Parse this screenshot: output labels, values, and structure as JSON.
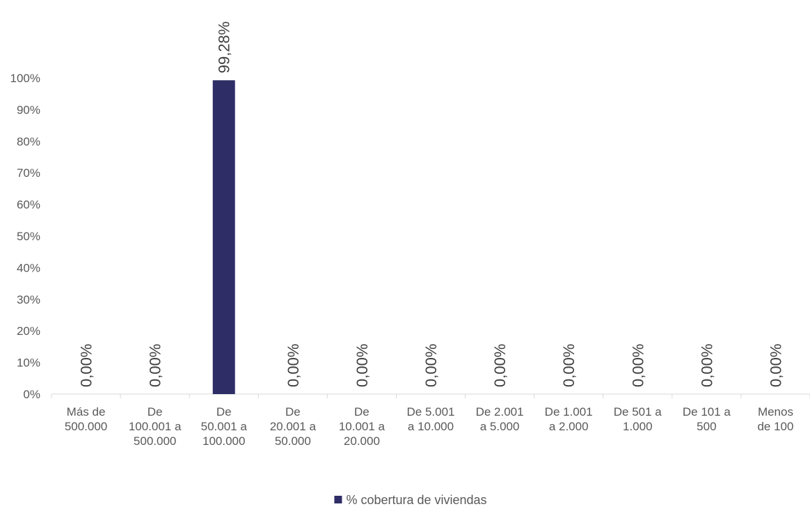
{
  "chart_data": {
    "type": "bar",
    "categories": [
      [
        "Más de",
        "500.000"
      ],
      [
        "De",
        "100.001 a",
        "500.000"
      ],
      [
        "De",
        "50.001 a",
        "100.000"
      ],
      [
        "De",
        "20.001 a",
        "50.000"
      ],
      [
        "De",
        "10.001 a",
        "20.000"
      ],
      [
        "De 5.001",
        "a 10.000"
      ],
      [
        "De 2.001",
        "a 5.000"
      ],
      [
        "De 1.001",
        "a 2.000"
      ],
      [
        "De 501 a",
        "1.000"
      ],
      [
        "De 101 a",
        "500"
      ],
      [
        "Menos",
        "de 100"
      ]
    ],
    "series": [
      {
        "name": "% cobertura de viviendas",
        "color": "#2e2d66",
        "values": [
          0,
          0,
          99.28,
          0,
          0,
          0,
          0,
          0,
          0,
          0,
          0
        ],
        "labels": [
          "0,00%",
          "0,00%",
          "99,28%",
          "0,00%",
          "0,00%",
          "0,00%",
          "0,00%",
          "0,00%",
          "0,00%",
          "0,00%",
          "0,00%"
        ]
      }
    ],
    "ylim": [
      0,
      100
    ],
    "yticks": [
      "0%",
      "10%",
      "20%",
      "30%",
      "40%",
      "50%",
      "60%",
      "70%",
      "80%",
      "90%",
      "100%"
    ],
    "legend_position": "bottom",
    "grid": false
  }
}
